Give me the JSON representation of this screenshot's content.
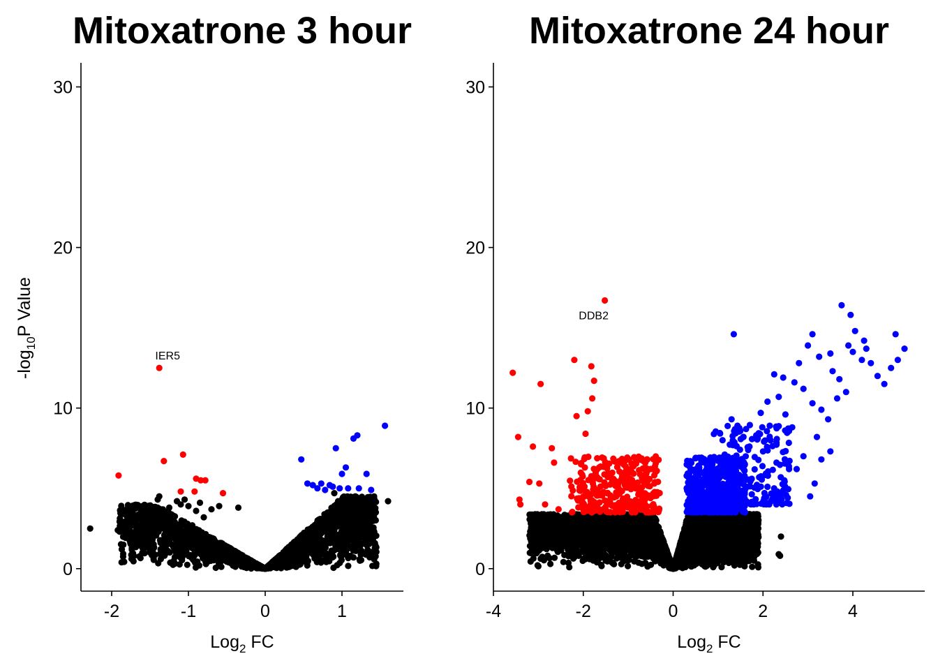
{
  "colors": {
    "not_significant": "#000000",
    "down_significant": "#ff0000",
    "up_significant": "#0000ff"
  },
  "chart_data": [
    {
      "type": "scatter",
      "title": "Mitoxatrone 3 hour",
      "xlabel": {
        "prefix": "Log",
        "sub": "2",
        "suffix": " FC"
      },
      "ylabel": {
        "prefix": "-log",
        "sub": "10",
        "suffix": "P Value"
      },
      "xlim": [
        -2.4,
        1.8
      ],
      "ylim": [
        -1.4,
        31.5
      ],
      "xticks": [
        -2,
        -1,
        0,
        1
      ],
      "yticks": [
        0,
        10,
        20,
        30
      ],
      "grid": false,
      "legend": "none",
      "cloud_seed": 11,
      "cloud": [
        {
          "x_min": -1.9,
          "x_max": 0.0,
          "side": "neg",
          "count": 1300,
          "vshape": 2.8,
          "y_cap": 4.0
        },
        {
          "x_min": 0.0,
          "x_max": 1.45,
          "side": "pos",
          "count": 1700,
          "vshape": 4.4,
          "y_cap": 4.5
        }
      ],
      "points_black": [
        [
          -2.28,
          2.5
        ],
        [
          -1.92,
          2.4
        ],
        [
          -1.88,
          2.6
        ],
        [
          -1.85,
          2.9
        ],
        [
          -1.8,
          2.1
        ],
        [
          -1.75,
          2.3
        ],
        [
          -1.72,
          1.6
        ],
        [
          -1.68,
          2.0
        ],
        [
          -1.65,
          2.7
        ],
        [
          -1.6,
          1.3
        ],
        [
          -1.58,
          1.8
        ],
        [
          -1.55,
          2.6
        ],
        [
          -1.5,
          1.0
        ],
        [
          -1.45,
          3.0
        ],
        [
          -1.42,
          3.5
        ],
        [
          -1.4,
          4.3
        ],
        [
          -1.38,
          4.5
        ],
        [
          -1.36,
          0.6
        ],
        [
          -1.34,
          1.5
        ],
        [
          -1.3,
          2.2
        ],
        [
          -1.25,
          3.8
        ],
        [
          -1.22,
          2.9
        ],
        [
          -1.2,
          3.3
        ],
        [
          -1.15,
          4.2
        ],
        [
          -1.1,
          4.0
        ],
        [
          -1.05,
          4.3
        ],
        [
          -1.0,
          3.9
        ],
        [
          -0.95,
          2.7
        ],
        [
          -0.9,
          3.6
        ],
        [
          -0.85,
          4.1
        ],
        [
          -0.8,
          3.2
        ],
        [
          -0.7,
          3.7
        ],
        [
          -0.6,
          3.9
        ],
        [
          -0.35,
          3.8
        ],
        [
          0.9,
          4.7
        ],
        [
          0.95,
          4.2
        ],
        [
          1.0,
          3.4
        ],
        [
          1.05,
          2.6
        ],
        [
          1.1,
          4.4
        ],
        [
          1.15,
          3.8
        ],
        [
          1.2,
          3.0
        ],
        [
          1.25,
          2.2
        ],
        [
          1.3,
          1.7
        ],
        [
          1.35,
          2.4
        ],
        [
          1.42,
          2.3
        ],
        [
          1.6,
          4.2
        ],
        [
          1.05,
          1.0
        ],
        [
          1.15,
          0.7
        ]
      ],
      "points_red": [
        [
          -1.91,
          5.8
        ],
        [
          -1.38,
          12.5
        ],
        [
          -1.32,
          6.7
        ],
        [
          -1.07,
          7.1
        ],
        [
          -1.1,
          4.8
        ],
        [
          -0.9,
          5.6
        ],
        [
          -0.84,
          5.5
        ],
        [
          -0.78,
          5.5
        ],
        [
          -0.92,
          4.8
        ],
        [
          -0.55,
          4.7
        ]
      ],
      "points_blue": [
        [
          0.47,
          6.8
        ],
        [
          0.55,
          5.3
        ],
        [
          0.62,
          5.2
        ],
        [
          0.68,
          5.0
        ],
        [
          0.73,
          5.3
        ],
        [
          0.78,
          4.9
        ],
        [
          0.84,
          5.2
        ],
        [
          0.88,
          5.1
        ],
        [
          0.92,
          7.5
        ],
        [
          0.97,
          5.0
        ],
        [
          1.0,
          5.9
        ],
        [
          1.05,
          6.3
        ],
        [
          1.08,
          5.0
        ],
        [
          1.15,
          8.1
        ],
        [
          1.2,
          8.3
        ],
        [
          1.22,
          5.0
        ],
        [
          1.32,
          5.9
        ],
        [
          1.38,
          4.9
        ],
        [
          1.56,
          8.9
        ]
      ],
      "annotations": [
        {
          "text": "IER5",
          "x": -1.38,
          "y": 12.5
        }
      ]
    },
    {
      "type": "scatter",
      "title": "Mitoxatrone 24 hour",
      "xlabel": {
        "prefix": "Log",
        "sub": "2",
        "suffix": " FC"
      },
      "ylabel": {
        "prefix": "",
        "sub": "",
        "suffix": ""
      },
      "xlim": [
        -4.0,
        5.6
      ],
      "ylim": [
        -1.4,
        31.5
      ],
      "xticks": [
        -4,
        -2,
        0,
        2,
        4
      ],
      "yticks": [
        0,
        10,
        20,
        30
      ],
      "grid": false,
      "legend": "none",
      "cloud_seed": 29,
      "cloud": [
        {
          "x_min": -3.2,
          "x_max": 0.0,
          "side": "neg",
          "count": 1900,
          "vshape": 8.0,
          "y_cap": 3.4
        },
        {
          "x_min": 0.0,
          "x_max": 1.9,
          "side": "pos",
          "count": 2400,
          "vshape": 10.0,
          "y_cap": 3.4
        }
      ],
      "blue_cloud": [
        {
          "x_min": 0.3,
          "x_max": 1.6,
          "count": 520,
          "y_min": 3.5,
          "y_max": 7.0,
          "seed": 5
        },
        {
          "x_min": 0.9,
          "x_max": 2.6,
          "count": 200,
          "y_min": 4.0,
          "y_max": 9.0,
          "seed": 6
        }
      ],
      "red_cloud": [
        {
          "x_min": -2.3,
          "x_max": -0.3,
          "count": 330,
          "y_min": 3.5,
          "y_max": 7.0,
          "seed": 7
        }
      ],
      "points_black": [
        [
          -2.72,
          2.0
        ],
        [
          -2.52,
          3.0
        ],
        [
          -2.48,
          2.2
        ],
        [
          -2.4,
          3.3
        ],
        [
          -2.35,
          1.8
        ],
        [
          -2.2,
          1.2
        ],
        [
          -2.1,
          0.8
        ],
        [
          -1.95,
          0.6
        ],
        [
          -1.6,
          0.7
        ],
        [
          -1.5,
          0.5
        ],
        [
          1.7,
          0.6
        ],
        [
          1.8,
          0.5
        ],
        [
          1.85,
          3.1
        ],
        [
          2.35,
          0.9
        ],
        [
          2.4,
          2.0
        ],
        [
          2.38,
          0.8
        ],
        [
          1.6,
          1.6
        ]
      ],
      "points_red": [
        [
          -1.52,
          16.7
        ],
        [
          -3.57,
          12.2
        ],
        [
          -3.45,
          8.2
        ],
        [
          -3.42,
          4.3
        ],
        [
          -3.4,
          4.0
        ],
        [
          -3.2,
          5.4
        ],
        [
          -3.12,
          7.6
        ],
        [
          -2.98,
          5.3
        ],
        [
          -2.95,
          11.5
        ],
        [
          -2.85,
          4.0
        ],
        [
          -2.7,
          7.5
        ],
        [
          -2.65,
          6.6
        ],
        [
          -2.55,
          3.7
        ],
        [
          -2.2,
          13.0
        ],
        [
          -2.15,
          9.5
        ],
        [
          -1.95,
          8.4
        ],
        [
          -1.82,
          12.6
        ],
        [
          -1.76,
          11.7
        ],
        [
          -1.8,
          10.6
        ],
        [
          -1.9,
          9.8
        ]
      ],
      "points_blue": [
        [
          1.35,
          14.6
        ],
        [
          3.75,
          16.4
        ],
        [
          3.95,
          15.8
        ],
        [
          4.05,
          14.8
        ],
        [
          4.0,
          13.5
        ],
        [
          3.9,
          13.9
        ],
        [
          4.25,
          14.2
        ],
        [
          4.3,
          13.7
        ],
        [
          4.2,
          13.0
        ],
        [
          4.4,
          12.8
        ],
        [
          4.55,
          12.0
        ],
        [
          4.7,
          11.5
        ],
        [
          4.95,
          14.6
        ],
        [
          5.15,
          13.7
        ],
        [
          5.0,
          13.0
        ],
        [
          4.85,
          12.5
        ],
        [
          3.1,
          14.6
        ],
        [
          3.0,
          13.9
        ],
        [
          3.25,
          13.2
        ],
        [
          3.5,
          13.4
        ],
        [
          3.55,
          12.3
        ],
        [
          3.7,
          11.8
        ],
        [
          3.85,
          11.0
        ],
        [
          3.65,
          10.6
        ],
        [
          2.25,
          12.1
        ],
        [
          2.45,
          11.9
        ],
        [
          2.7,
          11.6
        ],
        [
          2.8,
          12.8
        ],
        [
          2.9,
          11.2
        ],
        [
          3.1,
          10.3
        ],
        [
          3.3,
          9.9
        ],
        [
          3.45,
          9.3
        ],
        [
          3.5,
          7.3
        ],
        [
          3.2,
          8.2
        ],
        [
          3.15,
          5.3
        ],
        [
          3.05,
          4.5
        ],
        [
          2.75,
          6.2
        ],
        [
          2.65,
          8.8
        ],
        [
          2.5,
          9.6
        ],
        [
          2.35,
          10.7
        ],
        [
          2.1,
          10.4
        ],
        [
          1.95,
          9.7
        ],
        [
          1.85,
          8.3
        ],
        [
          2.0,
          7.3
        ],
        [
          2.3,
          6.6
        ],
        [
          1.7,
          7.6
        ],
        [
          1.45,
          8.6
        ],
        [
          1.3,
          9.3
        ],
        [
          1.1,
          8.0
        ],
        [
          1.55,
          6.4
        ],
        [
          2.55,
          6.5
        ],
        [
          2.9,
          7.0
        ],
        [
          3.3,
          6.8
        ],
        [
          2.15,
          8.9
        ]
      ],
      "annotations": [
        {
          "text": "DDB2",
          "x": -1.52,
          "y": 16.7
        }
      ]
    }
  ]
}
